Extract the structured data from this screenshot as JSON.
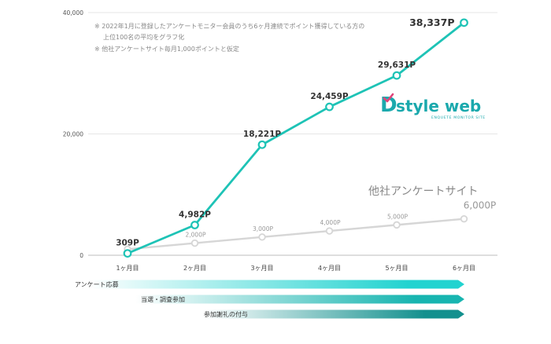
{
  "chart_data": {
    "type": "line",
    "categories": [
      "1ヶ月目",
      "2ヶ月目",
      "3ヶ月目",
      "4ヶ月目",
      "5ヶ月目",
      "6ヶ月目"
    ],
    "ylim": [
      0,
      40000
    ],
    "yticks": [
      "0",
      "20,000",
      "40,000"
    ],
    "grid": true,
    "series": [
      {
        "values": [
          309,
          4982,
          18221,
          24459,
          29631,
          38337
        ],
        "labels": [
          "309P",
          "4,982P",
          "18,221P",
          "24,459P",
          "29,631P",
          "38,337P"
        ],
        "color": "#1ec3b6"
      },
      {
        "name": "他社アンケートサイト",
        "values": [
          1000,
          2000,
          3000,
          4000,
          5000,
          6000
        ],
        "labels": [
          "1,000P",
          "2,000P",
          "3,000P",
          "4,000P",
          "5,000P",
          "6,000P"
        ],
        "color": "#d6d6d6"
      }
    ],
    "notes": [
      "※ 2022年1月に登録したアンケートモニター会員のうち6ヶ月連続でポイント獲得している方の",
      "上位100名の平均をグラフ化",
      "※ 他社アンケートサイト毎月1,000ポイントと仮定"
    ]
  },
  "logo": {
    "brand_d": "D",
    "brand_rest": "style web",
    "tagline": "ENQUETE MONITOR SITE"
  },
  "process_arrows": [
    {
      "label": "アンケート応募",
      "color": "#22d3d0"
    },
    {
      "label": "当選・調査参加",
      "color": "#17b5b0"
    },
    {
      "label": "参加謝礼の付与",
      "color": "#13908e"
    }
  ]
}
